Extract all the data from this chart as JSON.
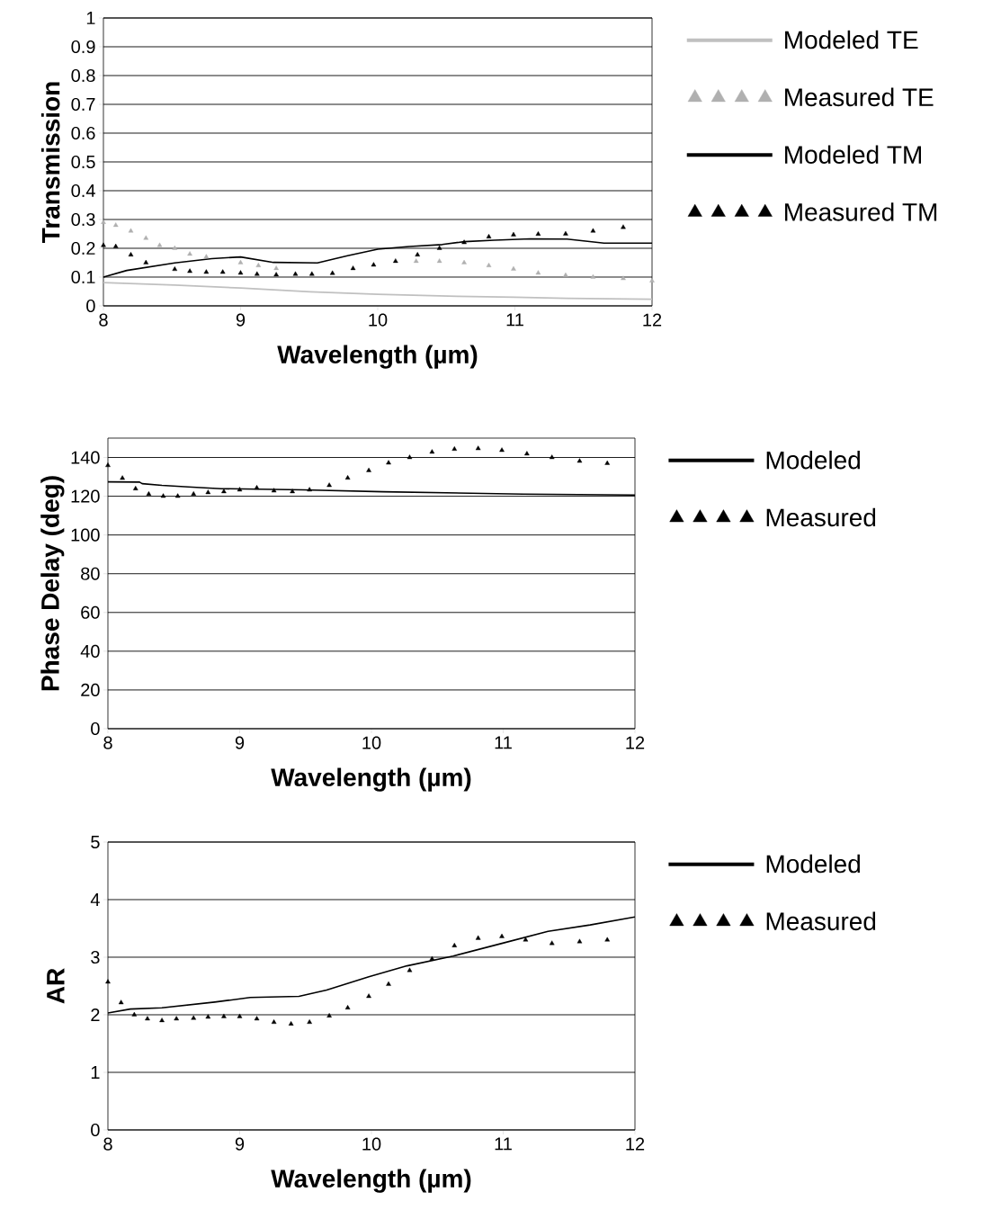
{
  "chart_data": [
    {
      "type": "line",
      "xlabel": "Wavelength (µm)",
      "ylabel": "Transmission",
      "xlim": [
        8,
        12
      ],
      "xticks": [
        8,
        9,
        10,
        11,
        12
      ],
      "ylim": [
        0,
        1
      ],
      "yticks": [
        0,
        0.1,
        0.2,
        0.3,
        0.4,
        0.5,
        0.6,
        0.7,
        0.8,
        0.9,
        1
      ],
      "grid": "y",
      "legend": "right",
      "series": [
        {
          "name": "Modeled TE",
          "marker": "none",
          "color": "#c0c0c0",
          "x": [
            8,
            8.52,
            9,
            9.51,
            10,
            10.58,
            11,
            11.38,
            12
          ],
          "values": [
            0.081,
            0.072,
            0.062,
            0.049,
            0.04,
            0.033,
            0.03,
            0.026,
            0.023
          ]
        },
        {
          "name": "Measured TE",
          "type": "scatter",
          "marker": "triangle",
          "color": "#b0b0b0",
          "x": [
            8,
            8.09,
            8.2,
            8.31,
            8.41,
            8.52,
            8.63,
            8.75,
            9,
            9.13,
            9.26,
            10.28,
            10.45,
            10.63,
            10.81,
            10.99,
            11.17,
            11.37,
            11.57,
            11.79,
            12
          ],
          "values": [
            0.29,
            0.28,
            0.26,
            0.235,
            0.21,
            0.2,
            0.18,
            0.17,
            0.15,
            0.14,
            0.13,
            0.155,
            0.155,
            0.15,
            0.14,
            0.128,
            0.114,
            0.106,
            0.1,
            0.095,
            0.087
          ]
        },
        {
          "name": "Modeled TM",
          "marker": "none",
          "color": "#000000",
          "x": [
            8,
            8.17,
            8.52,
            8.79,
            9,
            9.24,
            9.56,
            9.78,
            10,
            10.23,
            10.47,
            10.63,
            10.85,
            11.11,
            11.38,
            11.65,
            12
          ],
          "values": [
            0.1,
            0.123,
            0.149,
            0.164,
            0.17,
            0.151,
            0.149,
            0.174,
            0.197,
            0.206,
            0.213,
            0.223,
            0.228,
            0.233,
            0.232,
            0.218,
            0.218
          ]
        },
        {
          "name": "Measured TM",
          "type": "scatter",
          "marker": "triangle",
          "color": "#000000",
          "x": [
            8,
            8.09,
            8.2,
            8.31,
            8.52,
            8.63,
            8.75,
            8.87,
            9,
            9.12,
            9.26,
            9.4,
            9.52,
            9.67,
            9.82,
            9.97,
            10.13,
            10.29,
            10.45,
            10.63,
            10.81,
            10.99,
            11.17,
            11.37,
            11.57,
            11.79
          ],
          "values": [
            0.21,
            0.206,
            0.177,
            0.15,
            0.127,
            0.12,
            0.117,
            0.117,
            0.114,
            0.11,
            0.108,
            0.11,
            0.11,
            0.113,
            0.13,
            0.142,
            0.155,
            0.177,
            0.2,
            0.22,
            0.24,
            0.247,
            0.249,
            0.25,
            0.26,
            0.273
          ]
        }
      ]
    },
    {
      "type": "line",
      "xlabel": "Wavelength (µm)",
      "ylabel": "Phase Delay (deg)",
      "xlim": [
        8,
        12
      ],
      "xticks": [
        8,
        9,
        10,
        11,
        12
      ],
      "ylim": [
        0,
        150
      ],
      "yticks": [
        0,
        20,
        40,
        60,
        80,
        100,
        120,
        140
      ],
      "grid": "y",
      "legend": "right",
      "series": [
        {
          "name": "Modeled",
          "marker": "none",
          "color": "#000000",
          "x": [
            8,
            8.24,
            8.26,
            8.41,
            8.61,
            8.86,
            9.48,
            10.09,
            11.15,
            12
          ],
          "values": [
            127.4,
            127.3,
            126.5,
            125.6,
            124.8,
            123.9,
            123.3,
            122.3,
            121.1,
            120.6
          ]
        },
        {
          "name": "Measured",
          "type": "scatter",
          "marker": "triangle",
          "color": "#000000",
          "x": [
            8,
            8.11,
            8.21,
            8.31,
            8.42,
            8.53,
            8.65,
            8.76,
            8.88,
            9,
            9.13,
            9.26,
            9.4,
            9.53,
            9.68,
            9.82,
            9.98,
            10.13,
            10.29,
            10.46,
            10.63,
            10.81,
            10.99,
            11.18,
            11.37,
            11.58,
            11.79
          ],
          "values": [
            135.9,
            129.3,
            123.9,
            121.1,
            120,
            120,
            121.1,
            121.9,
            122.4,
            123.3,
            124.3,
            122.8,
            122.4,
            123.3,
            125.6,
            129.4,
            133.3,
            137.2,
            140,
            142.8,
            144.3,
            144.6,
            143.7,
            141.9,
            140,
            138.1,
            137
          ]
        }
      ]
    },
    {
      "type": "line",
      "xlabel": "Wavelength (µm)",
      "ylabel": "AR",
      "xlim": [
        8,
        12
      ],
      "xticks": [
        8,
        9,
        10,
        11,
        12
      ],
      "ylim": [
        0,
        5
      ],
      "yticks": [
        0,
        1,
        2,
        3,
        4,
        5
      ],
      "grid": "y",
      "legend": "right",
      "series": [
        {
          "name": "Modeled",
          "marker": "none",
          "color": "#000000",
          "x": [
            8,
            8.17,
            8.41,
            8.81,
            9.08,
            9.45,
            9.66,
            9.98,
            10.27,
            10.62,
            10.99,
            11.34,
            11.66,
            12
          ],
          "values": [
            2.03,
            2.1,
            2.12,
            2.22,
            2.3,
            2.32,
            2.43,
            2.66,
            2.85,
            3.02,
            3.24,
            3.45,
            3.56,
            3.7
          ]
        },
        {
          "name": "Measured",
          "type": "scatter",
          "marker": "triangle",
          "color": "#000000",
          "x": [
            8,
            8.1,
            8.2,
            8.3,
            8.41,
            8.52,
            8.65,
            8.76,
            8.88,
            9,
            9.13,
            9.26,
            9.39,
            9.53,
            9.68,
            9.82,
            9.98,
            10.13,
            10.29,
            10.46,
            10.63,
            10.81,
            10.99,
            11.17,
            11.37,
            11.58,
            11.79
          ],
          "values": [
            2.57,
            2.21,
            2.0,
            1.93,
            1.9,
            1.93,
            1.94,
            1.96,
            1.97,
            1.97,
            1.93,
            1.87,
            1.84,
            1.87,
            1.98,
            2.12,
            2.32,
            2.53,
            2.77,
            2.97,
            3.2,
            3.33,
            3.36,
            3.3,
            3.24,
            3.27,
            3.3
          ]
        }
      ]
    }
  ]
}
